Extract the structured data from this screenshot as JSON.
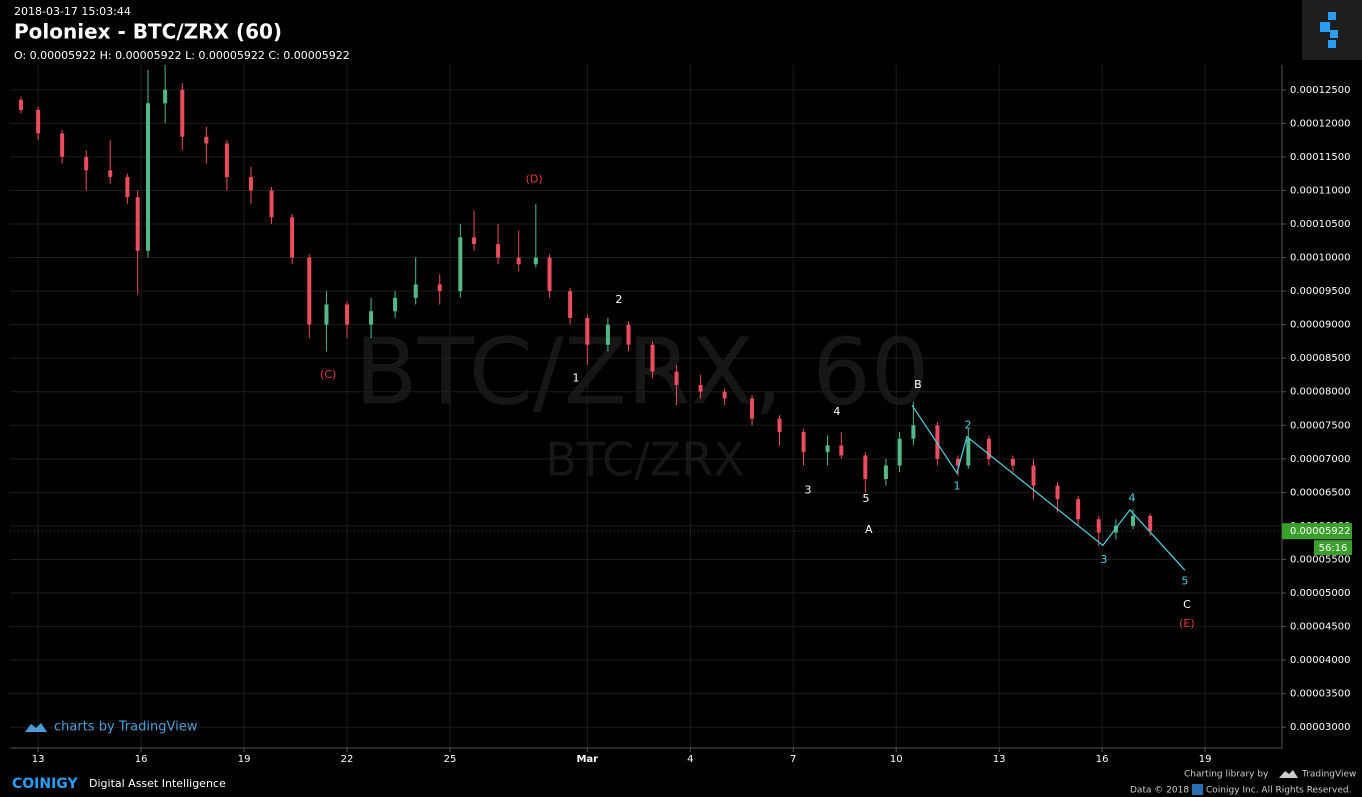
{
  "header": {
    "timestamp": "2018-03-17 15:03:44",
    "title": "Poloniex - BTC/ZRX (60)",
    "ohlc": "O: 0.00005922 H: 0.00005922 L: 0.00005922 C: 0.00005922"
  },
  "watermark": {
    "main": "BTC/ZRX, 60",
    "sub": "BTC/ZRX"
  },
  "branding": {
    "tradingview": "charts by TradingView",
    "coinigy": "COINIGY",
    "tagline": "Digital Asset Intelligence",
    "library": "Charting library by",
    "library_name": "TradingView",
    "data": "Data © 2018",
    "rights": "Coinigy Inc. All Rights Reserved."
  },
  "chart_data": {
    "type": "candlestick",
    "up_color": "#53b987",
    "down_color": "#eb4d5c",
    "grid": true,
    "xlim": [
      -0.82,
      36.24
    ],
    "ylim": [
      2.69e-05,
      0.0001287
    ],
    "xticks": [
      {
        "value": 0,
        "label": "13"
      },
      {
        "value": 3,
        "label": "16"
      },
      {
        "value": 6,
        "label": "19"
      },
      {
        "value": 9,
        "label": "22"
      },
      {
        "value": 12,
        "label": "25"
      },
      {
        "value": 16,
        "label": "Mar"
      },
      {
        "value": 19,
        "label": "4"
      },
      {
        "value": 22,
        "label": "7"
      },
      {
        "value": 25,
        "label": "10"
      },
      {
        "value": 28,
        "label": "13"
      },
      {
        "value": 31,
        "label": "16"
      },
      {
        "value": 34,
        "label": "19"
      }
    ],
    "yticks": [
      {
        "value": 3e-05,
        "label": "0.00003000"
      },
      {
        "value": 3.5e-05,
        "label": "0.00003500"
      },
      {
        "value": 4e-05,
        "label": "0.00004000"
      },
      {
        "value": 4.5e-05,
        "label": "0.00004500"
      },
      {
        "value": 5e-05,
        "label": "0.00005000"
      },
      {
        "value": 5.5e-05,
        "label": "0.00005500"
      },
      {
        "value": 6e-05,
        "label": "0.00006000"
      },
      {
        "value": 6.5e-05,
        "label": "0.00006500"
      },
      {
        "value": 7e-05,
        "label": "0.00007000"
      },
      {
        "value": 7.5e-05,
        "label": "0.00007500"
      },
      {
        "value": 8e-05,
        "label": "0.00008000"
      },
      {
        "value": 8.5e-05,
        "label": "0.00008500"
      },
      {
        "value": 9e-05,
        "label": "0.00009000"
      },
      {
        "value": 9.5e-05,
        "label": "0.00009500"
      },
      {
        "value": 0.0001,
        "label": "0.00010000"
      },
      {
        "value": 0.000105,
        "label": "0.00010500"
      },
      {
        "value": 0.00011,
        "label": "0.00011000"
      },
      {
        "value": 0.000115,
        "label": "0.00011500"
      },
      {
        "value": 0.00012,
        "label": "0.00012000"
      },
      {
        "value": 0.000125,
        "label": "0.00012500"
      }
    ],
    "x": [
      -0.5,
      0,
      0.7,
      1.4,
      2.1,
      2.6,
      2.9,
      3.2,
      3.7,
      4.2,
      4.9,
      5.5,
      6.2,
      6.8,
      7.4,
      7.9,
      8.4,
      9.0,
      9.7,
      10.4,
      11.0,
      11.7,
      12.3,
      12.7,
      13.4,
      14.0,
      14.5,
      14.9,
      15.5,
      16.0,
      16.6,
      17.2,
      17.9,
      18.6,
      19.3,
      20.0,
      20.8,
      21.6,
      22.3,
      23.0,
      23.4,
      24.1,
      24.7,
      25.1,
      25.5,
      26.2,
      26.8,
      27.1,
      27.7,
      28.4,
      29.0,
      29.7,
      30.3,
      30.9,
      31.4,
      31.9,
      32.4
    ],
    "open": [
      0.0001235,
      0.000122,
      0.0001185,
      0.000115,
      0.000113,
      0.000112,
      0.000109,
      0.000101,
      0.000123,
      0.000125,
      0.000118,
      0.000117,
      0.000112,
      0.00011,
      0.000106,
      0.0001,
      9e-05,
      9.3e-05,
      9e-05,
      9.2e-05,
      9.4e-05,
      9.6e-05,
      9.5e-05,
      0.000103,
      0.000102,
      0.0001,
      9.9e-05,
      0.0001,
      9.5e-05,
      9.1e-05,
      8.7e-05,
      9e-05,
      8.7e-05,
      8.3e-05,
      8.1e-05,
      8e-05,
      7.9e-05,
      7.6e-05,
      7.4e-05,
      7.1e-05,
      7.2e-05,
      7.05e-05,
      6.7e-05,
      6.9e-05,
      7.3e-05,
      7.5e-05,
      7e-05,
      6.9e-05,
      7.3e-05,
      7e-05,
      6.9e-05,
      6.6e-05,
      6.4e-05,
      6.1e-05,
      5.9e-05,
      6e-05,
      6.15e-05
    ],
    "high": [
      0.000124,
      0.0001225,
      0.000119,
      0.000116,
      0.0001175,
      0.0001125,
      0.00011,
      0.000128,
      0.0001287,
      0.000126,
      0.0001195,
      0.0001175,
      0.0001135,
      0.0001105,
      0.0001065,
      0.0001005,
      9.5e-05,
      9.35e-05,
      9.4e-05,
      9.5e-05,
      0.0001,
      9.75e-05,
      0.000105,
      0.000107,
      0.000105,
      0.000104,
      0.000108,
      0.0001005,
      9.55e-05,
      9.15e-05,
      9.1e-05,
      9.05e-05,
      8.75e-05,
      8.4e-05,
      8.25e-05,
      8.05e-05,
      7.95e-05,
      7.65e-05,
      7.45e-05,
      7.35e-05,
      7.4e-05,
      7.1e-05,
      7e-05,
      7.4e-05,
      7.85e-05,
      7.55e-05,
      7.05e-05,
      7.45e-05,
      7.35e-05,
      7.05e-05,
      7e-05,
      6.65e-05,
      6.45e-05,
      6.15e-05,
      6.1e-05,
      6.25e-05,
      6.18e-05
    ],
    "low": [
      0.0001215,
      0.0001175,
      0.000114,
      0.00011,
      0.000111,
      0.000108,
      9.45e-05,
      0.0001,
      0.00012,
      0.000116,
      0.000114,
      0.00011,
      0.000108,
      0.000105,
      9.9e-05,
      8.8e-05,
      8.6e-05,
      8.8e-05,
      8.8e-05,
      9.1e-05,
      9.3e-05,
      9.3e-05,
      9.4e-05,
      0.000101,
      9.9e-05,
      9.8e-05,
      9.85e-05,
      9.4e-05,
      9e-05,
      8.4e-05,
      8.6e-05,
      8.6e-05,
      8.2e-05,
      7.8e-05,
      7.9e-05,
      7.8e-05,
      7.5e-05,
      7.2e-05,
      6.9e-05,
      6.9e-05,
      7e-05,
      6.5e-05,
      6.6e-05,
      6.8e-05,
      7.2e-05,
      6.9e-05,
      6.75e-05,
      6.85e-05,
      6.9e-05,
      6.8e-05,
      6.4e-05,
      6.2e-05,
      6e-05,
      5.7e-05,
      5.8e-05,
      5.95e-05,
      5.85e-05
    ],
    "close": [
      0.000122,
      0.0001185,
      0.000115,
      0.000113,
      0.000112,
      0.000109,
      0.000101,
      0.000123,
      0.000125,
      0.000118,
      0.000117,
      0.000112,
      0.00011,
      0.000106,
      0.0001,
      9e-05,
      9.3e-05,
      9e-05,
      9.2e-05,
      9.4e-05,
      9.6e-05,
      9.5e-05,
      0.000103,
      0.000102,
      0.0001,
      9.9e-05,
      0.0001,
      9.5e-05,
      9.1e-05,
      8.7e-05,
      9e-05,
      8.7e-05,
      8.3e-05,
      8.1e-05,
      8e-05,
      7.9e-05,
      7.6e-05,
      7.4e-05,
      7.1e-05,
      7.2e-05,
      7.05e-05,
      6.7e-05,
      6.9e-05,
      7.3e-05,
      7.5e-05,
      7e-05,
      6.9e-05,
      7.3e-05,
      7e-05,
      6.9e-05,
      6.6e-05,
      6.4e-05,
      6.1e-05,
      5.9e-05,
      6e-05,
      6.15e-05,
      5.92e-05
    ],
    "wave": {
      "color": "#4dd0e1",
      "x": [
        25.46,
        26.77,
        27.06,
        31.02,
        31.81,
        33.41
      ],
      "values": [
        7.8e-05,
        6.79e-05,
        7.33e-05,
        5.71e-05,
        6.24e-05,
        5.34e-05
      ]
    },
    "annotations": [
      {
        "text": "(D)",
        "color": "#e53935",
        "x": 14.45,
        "y": 0.0001116
      },
      {
        "text": "(C)",
        "color": "#e53935",
        "x": 8.45,
        "y": 8.25e-05
      },
      {
        "text": "1",
        "color": "#ffffff",
        "x": 15.67,
        "y": 8.2e-05
      },
      {
        "text": "2",
        "color": "#ffffff",
        "x": 16.92,
        "y": 9.37e-05
      },
      {
        "text": "4",
        "color": "#ffffff",
        "x": 23.27,
        "y": 7.7e-05
      },
      {
        "text": "3",
        "color": "#ffffff",
        "x": 22.43,
        "y": 6.53e-05
      },
      {
        "text": "5",
        "color": "#ffffff",
        "x": 24.12,
        "y": 6.4e-05
      },
      {
        "text": "A",
        "color": "#ffffff",
        "x": 24.2,
        "y": 5.94e-05
      },
      {
        "text": "B",
        "color": "#ffffff",
        "x": 25.63,
        "y": 8.1e-05
      },
      {
        "text": "1",
        "color": "#4dd0e1",
        "x": 26.77,
        "y": 6.59e-05
      },
      {
        "text": "2",
        "color": "#4dd0e1",
        "x": 27.09,
        "y": 7.5e-05
      },
      {
        "text": "3",
        "color": "#4dd0e1",
        "x": 31.05,
        "y": 5.49e-05
      },
      {
        "text": "4",
        "color": "#4dd0e1",
        "x": 31.87,
        "y": 6.41e-05
      },
      {
        "text": "5",
        "color": "#4dd0e1",
        "x": 33.41,
        "y": 5.17e-05
      },
      {
        "text": "C",
        "color": "#ffffff",
        "x": 33.47,
        "y": 4.82e-05
      },
      {
        "text": "(E)",
        "color": "#e53935",
        "x": 33.47,
        "y": 4.54e-05
      }
    ],
    "last_price": {
      "value": 5.922e-05,
      "label": "0.00005922",
      "countdown": "56:16",
      "color": "#3aa02b"
    }
  }
}
